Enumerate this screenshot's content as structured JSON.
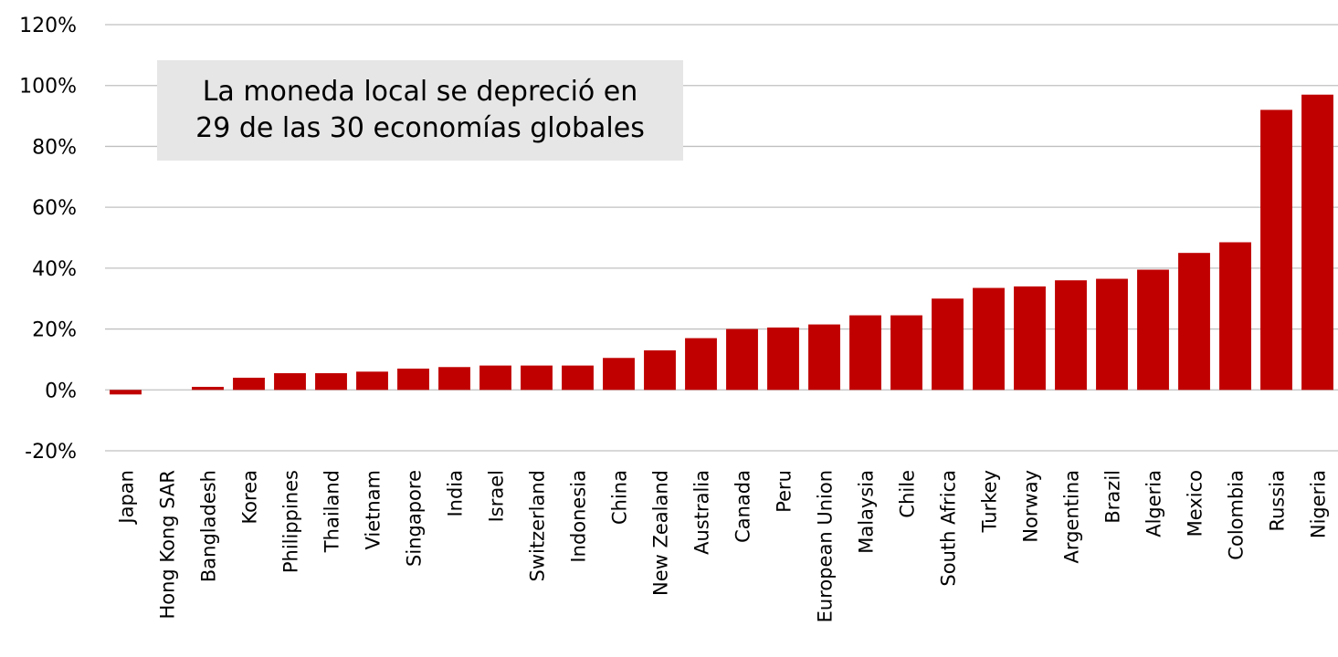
{
  "chart_data": {
    "type": "bar",
    "categories": [
      "Japan",
      "Hong Kong SAR",
      "Bangladesh",
      "Korea",
      "Philippines",
      "Thailand",
      "Vietnam",
      "Singapore",
      "India",
      "Israel",
      "Switzerland",
      "Indonesia",
      "China",
      "New Zealand",
      "Australia",
      "Canada",
      "Peru",
      "European Union",
      "Malaysia",
      "Chile",
      "South Africa",
      "Turkey",
      "Norway",
      "Argentina",
      "Brazil",
      "Algeria",
      "Mexico",
      "Colombia",
      "Russia",
      "Nigeria"
    ],
    "values": [
      -1.5,
      0,
      1,
      4,
      5.5,
      5.5,
      6,
      7,
      7.5,
      8,
      8,
      8,
      10.5,
      13,
      17,
      20,
      20.5,
      21.5,
      24.5,
      24.5,
      30,
      33.5,
      34,
      36,
      36.5,
      39.5,
      45,
      48.5,
      92,
      97
    ],
    "ylim": [
      -20,
      120
    ],
    "yticks": [
      "120%",
      "100%",
      "80%",
      "60%",
      "40%",
      "20%",
      "0%",
      "-20%"
    ],
    "ytick_values": [
      120,
      100,
      80,
      60,
      40,
      20,
      0,
      -20
    ],
    "grid": true,
    "bar_color": "#c00000",
    "annotation": {
      "line1": "La moneda local se depreció en",
      "line2": "29 de las 30 economías globales"
    }
  }
}
